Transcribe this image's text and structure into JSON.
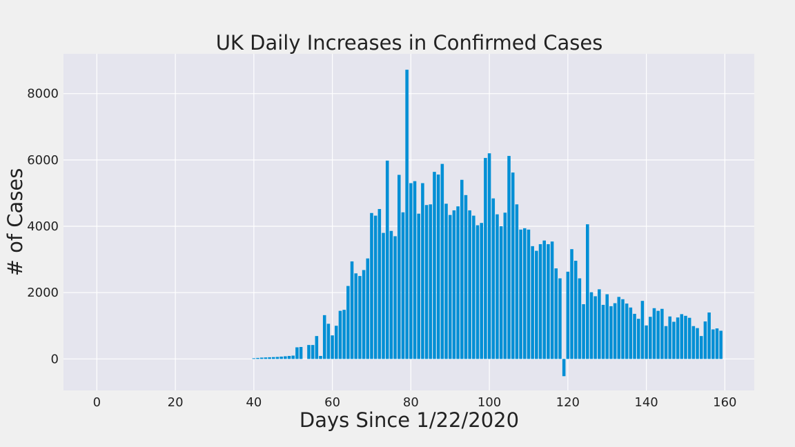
{
  "chart_data": {
    "type": "bar",
    "title": "UK Daily Increases in Confirmed Cases",
    "xlabel": "Days Since 1/22/2020",
    "ylabel": "# of Cases",
    "xlim": [
      -8.5,
      167.5
    ],
    "ylim": [
      -950,
      9200
    ],
    "xticks": [
      0,
      20,
      40,
      60,
      80,
      100,
      120,
      140,
      160
    ],
    "yticks": [
      0,
      2000,
      4000,
      6000,
      8000
    ],
    "grid": true,
    "bar_color": "#008fd5",
    "x": [
      0,
      1,
      2,
      3,
      4,
      5,
      6,
      7,
      8,
      9,
      10,
      11,
      12,
      13,
      14,
      15,
      16,
      17,
      18,
      19,
      20,
      21,
      22,
      23,
      24,
      25,
      26,
      27,
      28,
      29,
      30,
      31,
      32,
      33,
      34,
      35,
      36,
      37,
      38,
      39,
      40,
      41,
      42,
      43,
      44,
      45,
      46,
      47,
      48,
      49,
      50,
      51,
      52,
      53,
      54,
      55,
      56,
      57,
      58,
      59,
      60,
      61,
      62,
      63,
      64,
      65,
      66,
      67,
      68,
      69,
      70,
      71,
      72,
      73,
      74,
      75,
      76,
      77,
      78,
      79,
      80,
      81,
      82,
      83,
      84,
      85,
      86,
      87,
      88,
      89,
      90,
      91,
      92,
      93,
      94,
      95,
      96,
      97,
      98,
      99,
      100,
      101,
      102,
      103,
      104,
      105,
      106,
      107,
      108,
      109,
      110,
      111,
      112,
      113,
      114,
      115,
      116,
      117,
      118,
      119,
      120,
      121,
      122,
      123,
      124,
      125,
      126,
      127,
      128,
      129,
      130,
      131,
      132,
      133,
      134,
      135,
      136,
      137,
      138,
      139,
      140,
      141,
      142,
      143,
      144,
      145,
      146,
      147,
      148,
      149,
      150,
      151,
      152,
      153,
      154,
      155,
      156,
      157,
      158,
      159
    ],
    "values": [
      0,
      0,
      0,
      0,
      0,
      0,
      0,
      0,
      0,
      0,
      0,
      0,
      0,
      0,
      0,
      0,
      0,
      0,
      0,
      0,
      0,
      0,
      0,
      0,
      0,
      0,
      0,
      0,
      0,
      0,
      0,
      0,
      0,
      0,
      0,
      0,
      0,
      0,
      0,
      0,
      20,
      30,
      40,
      45,
      50,
      55,
      60,
      70,
      80,
      90,
      100,
      350,
      360,
      0,
      420,
      420,
      690,
      90,
      1320,
      1060,
      710,
      1000,
      1450,
      1480,
      2200,
      2940,
      2580,
      2500,
      2680,
      3030,
      4400,
      4320,
      4520,
      3800,
      5980,
      3860,
      3700,
      5550,
      4420,
      8720,
      5300,
      5360,
      4380,
      5300,
      4640,
      4660,
      5640,
      5560,
      5880,
      4680,
      4340,
      4480,
      4600,
      5400,
      4940,
      4480,
      4320,
      4030,
      4100,
      6060,
      6200,
      4840,
      4360,
      4000,
      4410,
      6120,
      5620,
      4660,
      3900,
      3940,
      3900,
      3400,
      3260,
      3460,
      3570,
      3460,
      3540,
      2730,
      2430,
      -520,
      2630,
      3310,
      2960,
      2430,
      1650,
      4060,
      2010,
      1890,
      2100,
      1630,
      1950,
      1590,
      1680,
      1870,
      1800,
      1670,
      1550,
      1360,
      1210,
      1750,
      1010,
      1270,
      1530,
      1450,
      1510,
      990,
      1280,
      1120,
      1250,
      1350,
      1300,
      1240,
      990,
      930,
      690,
      1130,
      1400,
      890,
      920,
      850
    ]
  }
}
